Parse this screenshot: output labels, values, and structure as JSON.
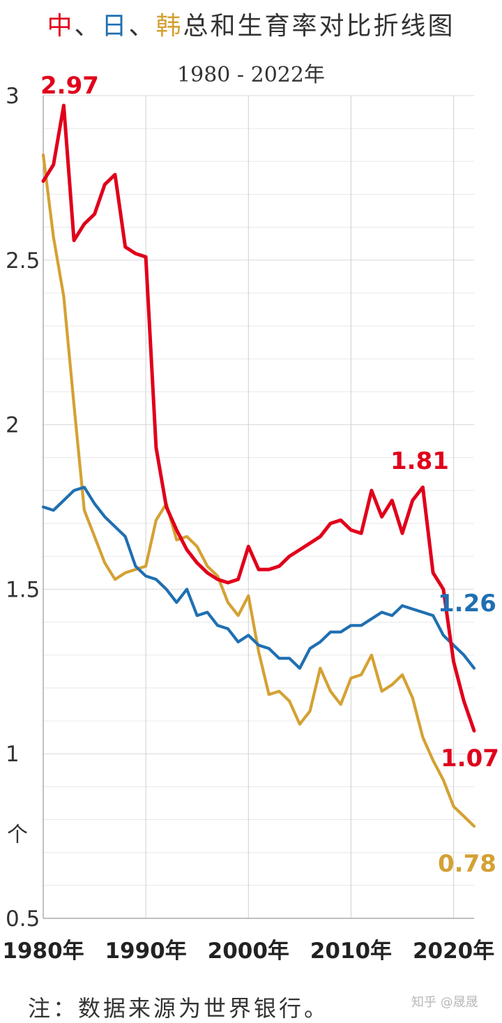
{
  "title": {
    "c1": "中",
    "sep1": "、",
    "c2": "日",
    "sep2": "、",
    "c3": "韩",
    "rest": "总和生育率对比折线图",
    "colors": {
      "c1": "#e0001b",
      "c2": "#1f6fb2",
      "c3": "#d4a133",
      "rest": "#333333"
    }
  },
  "subtitle": "1980 - 2022年",
  "note": "注：数据来源为世界银行。",
  "watermark": "知乎 @晟晟",
  "chart_data": {
    "type": "line",
    "ylabel": "个",
    "ylim": [
      0.5,
      3
    ],
    "xlim": [
      1980,
      2022
    ],
    "yticks": [
      {
        "v": 3,
        "label": "3"
      },
      {
        "v": 2.5,
        "label": "2.5"
      },
      {
        "v": 2,
        "label": "2"
      },
      {
        "v": 1.5,
        "label": "1.5"
      },
      {
        "v": 1,
        "label": "1"
      },
      {
        "v": 0.5,
        "label": "0.5"
      }
    ],
    "xticks": [
      {
        "v": 1980,
        "label": "1980年"
      },
      {
        "v": 1990,
        "label": "1990年"
      },
      {
        "v": 2000,
        "label": "2000年"
      },
      {
        "v": 2010,
        "label": "2010年"
      },
      {
        "v": 2020,
        "label": "2020年"
      }
    ],
    "grid": true,
    "x": [
      1980,
      1981,
      1982,
      1983,
      1984,
      1985,
      1986,
      1987,
      1988,
      1989,
      1990,
      1991,
      1992,
      1993,
      1994,
      1995,
      1996,
      1997,
      1998,
      1999,
      2000,
      2001,
      2002,
      2003,
      2004,
      2005,
      2006,
      2007,
      2008,
      2009,
      2010,
      2011,
      2012,
      2013,
      2014,
      2015,
      2016,
      2017,
      2018,
      2019,
      2020,
      2021,
      2022
    ],
    "series": [
      {
        "key": "china",
        "color": "#e0001b",
        "values": [
          2.74,
          2.79,
          2.97,
          2.56,
          2.61,
          2.64,
          2.73,
          2.76,
          2.54,
          2.52,
          2.51,
          1.93,
          1.75,
          1.68,
          1.62,
          1.58,
          1.55,
          1.53,
          1.52,
          1.53,
          1.63,
          1.56,
          1.56,
          1.57,
          1.6,
          1.62,
          1.64,
          1.66,
          1.7,
          1.71,
          1.68,
          1.67,
          1.8,
          1.72,
          1.77,
          1.67,
          1.77,
          1.81,
          1.55,
          1.5,
          1.28,
          1.16,
          1.07
        ]
      },
      {
        "key": "japan",
        "color": "#1f6fb2",
        "values": [
          1.75,
          1.74,
          1.77,
          1.8,
          1.81,
          1.76,
          1.72,
          1.69,
          1.66,
          1.57,
          1.54,
          1.53,
          1.5,
          1.46,
          1.5,
          1.42,
          1.43,
          1.39,
          1.38,
          1.34,
          1.36,
          1.33,
          1.32,
          1.29,
          1.29,
          1.26,
          1.32,
          1.34,
          1.37,
          1.37,
          1.39,
          1.39,
          1.41,
          1.43,
          1.42,
          1.45,
          1.44,
          1.43,
          1.42,
          1.36,
          1.33,
          1.3,
          1.26
        ]
      },
      {
        "key": "korea",
        "color": "#d4a133",
        "values": [
          2.82,
          2.57,
          2.39,
          2.06,
          1.74,
          1.66,
          1.58,
          1.53,
          1.55,
          1.56,
          1.57,
          1.71,
          1.76,
          1.65,
          1.66,
          1.63,
          1.57,
          1.54,
          1.46,
          1.42,
          1.48,
          1.31,
          1.18,
          1.19,
          1.16,
          1.09,
          1.13,
          1.26,
          1.19,
          1.15,
          1.23,
          1.24,
          1.3,
          1.19,
          1.21,
          1.24,
          1.17,
          1.05,
          0.98,
          0.92,
          0.84,
          0.81,
          0.78
        ]
      }
    ],
    "annotations": [
      {
        "text": "2.97",
        "series": "china"
      },
      {
        "text": "1.81",
        "series": "china"
      },
      {
        "text": "1.07",
        "series": "china"
      },
      {
        "text": "1.26",
        "series": "japan"
      },
      {
        "text": "0.78",
        "series": "korea"
      }
    ]
  }
}
